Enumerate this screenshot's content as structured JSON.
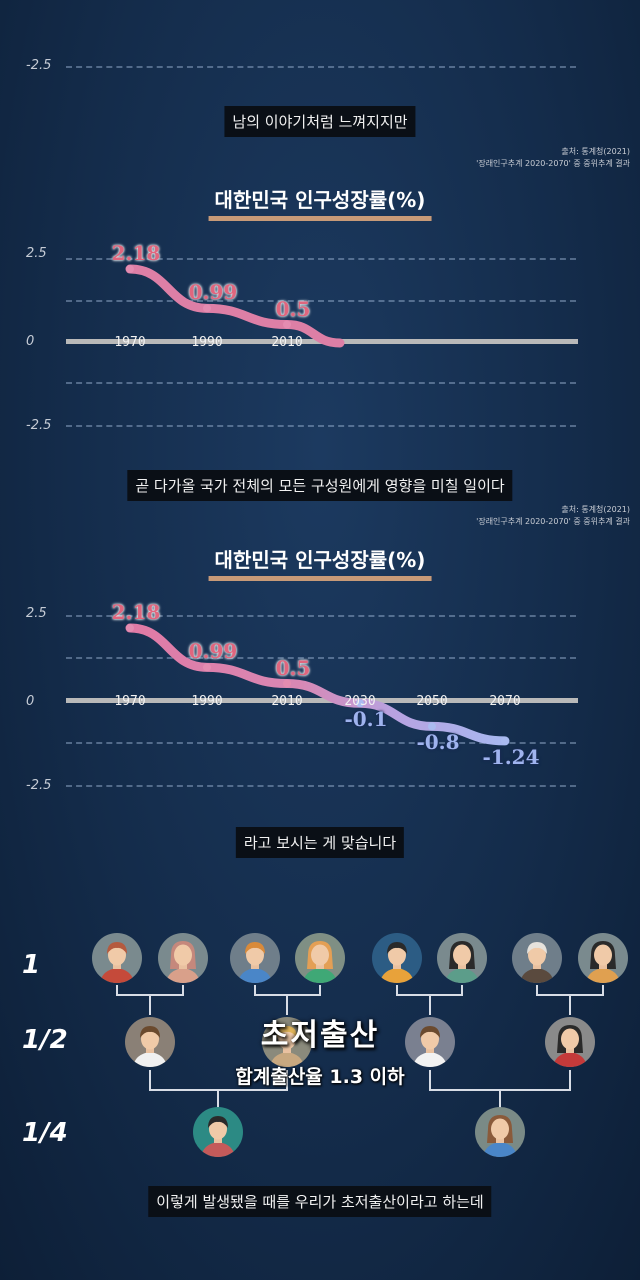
{
  "panel1": {
    "ytick": "-2.5",
    "caption": "남의 이야기처럼 느껴지지만"
  },
  "panel2": {
    "source_line1": "출처: 통계청(2021)",
    "source_line2": "'장래인구추계 2020-2070' 중 중위추계 결과",
    "caption": "곧 다가올 국가 전체의 모든 구성원에게 영향을 미칠 일이다"
  },
  "panel3": {
    "source_line1": "출처: 통계청(2021)",
    "source_line2": "'장래인구추계 2020-2070' 중 중위추계 결과",
    "caption": "라고 보시는 게 맞습니다"
  },
  "panel4": {
    "gen1": "1",
    "gen2": "1/2",
    "gen3": "1/4",
    "title": "초저출산",
    "subtitle": "합계출산율 1.3 이하",
    "caption": "이렇게 발생됐을 때를 우리가 초저출산이라고 하는데",
    "icons": [
      "man-avatar-icon",
      "woman-avatar-icon",
      "man-glasses-avatar-icon",
      "woman-redhair-avatar-icon",
      "man-glasses-orange-avatar-icon",
      "woman-longhair-avatar-icon",
      "man-beard-avatar-icon",
      "woman-avatar-icon",
      "child-avatar-icon",
      "person-avatar-icon",
      "man-avatar-icon",
      "woman-avatar-icon",
      "boy-avatar-icon",
      "girl-avatar-icon"
    ]
  },
  "chart_data": [
    {
      "type": "line",
      "title": "대한민국 인구성장률(%)",
      "yticks": [
        "2.5",
        "0",
        "-2.5"
      ],
      "ylim": [
        -2.5,
        2.5
      ],
      "x": [
        "1970",
        "1990",
        "2010"
      ],
      "values": [
        2.18,
        0.99,
        0.5
      ],
      "labels": [
        "2.18",
        "0.99",
        "0.5"
      ],
      "grid": true
    },
    {
      "type": "line",
      "title": "대한민국 인구성장률(%)",
      "yticks": [
        "2.5",
        "0",
        "-2.5"
      ],
      "ylim": [
        -2.5,
        2.5
      ],
      "x": [
        "1970",
        "1990",
        "2010",
        "2030",
        "2050",
        "2070"
      ],
      "values": [
        2.18,
        0.99,
        0.5,
        -0.1,
        -0.8,
        -1.24
      ],
      "labels": [
        "2.18",
        "0.99",
        "0.5",
        "-0.1",
        "-0.8",
        "-1.24"
      ],
      "grid": true,
      "colors": {
        "positive": "#e07aa5",
        "negative": "#a7b8f0"
      }
    }
  ]
}
